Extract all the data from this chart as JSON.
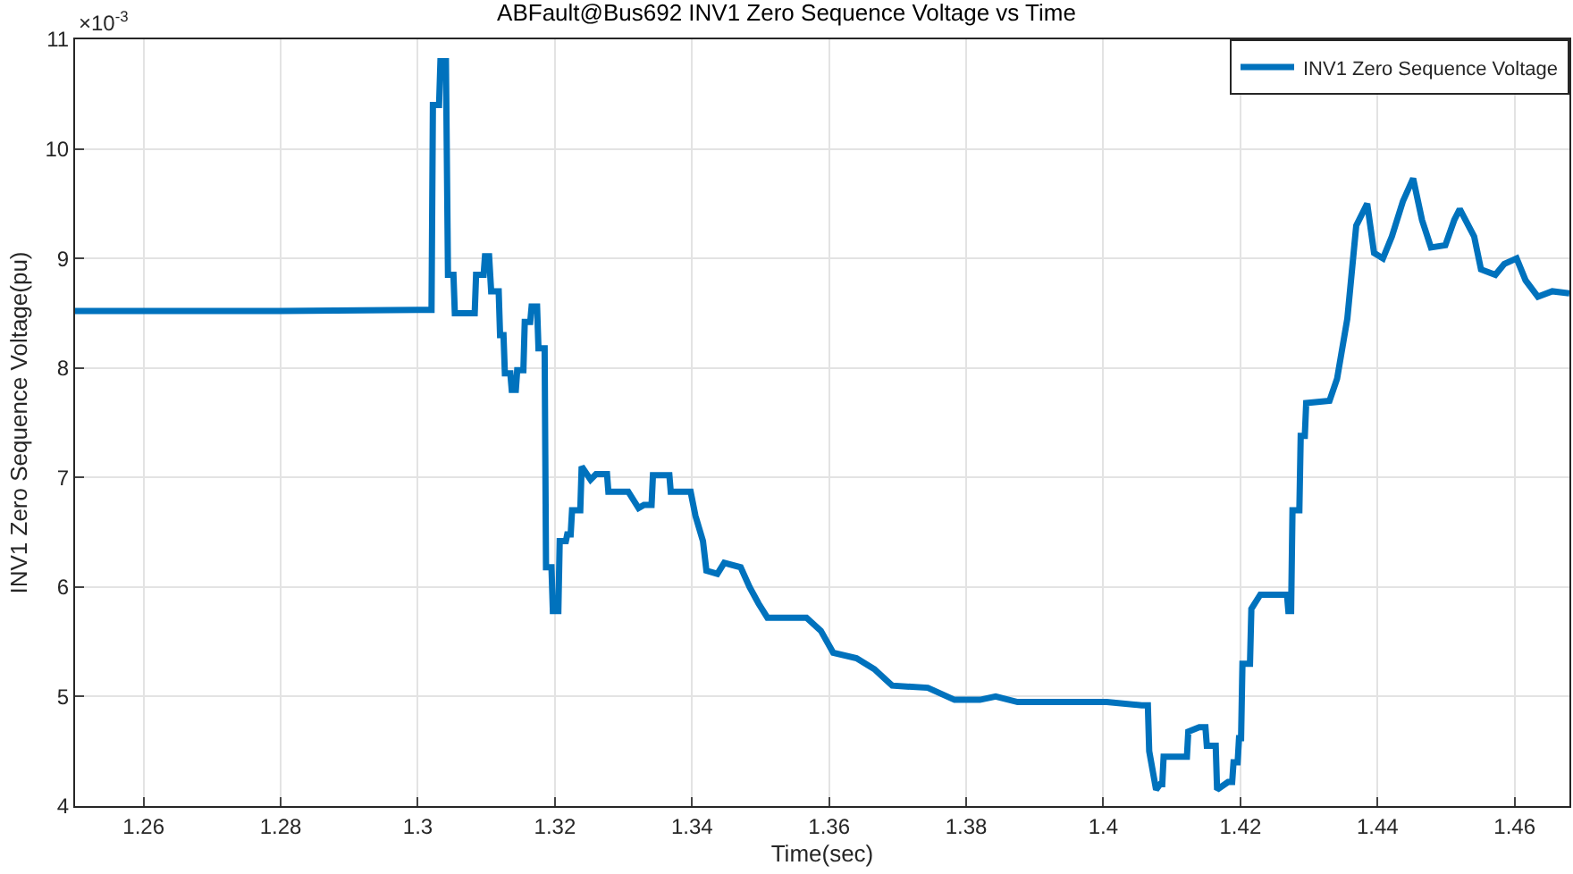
{
  "chart_data": {
    "type": "line",
    "title": "ABFault@Bus692 INV1 Zero Sequence Voltage vs Time",
    "xlabel": "Time(sec)",
    "ylabel": "INV1 Zero Sequence Voltage(pu)",
    "annotations": [
      "×10$^{-3}$"
    ],
    "xlim": [
      1.25,
      1.468
    ],
    "xticks": [
      1.26,
      1.28,
      1.3,
      1.32,
      1.34,
      1.36,
      1.38,
      1.4,
      1.42,
      1.44,
      1.46
    ],
    "ylim": [
      4,
      11
    ],
    "yticks": [
      4,
      5,
      6,
      7,
      8,
      9,
      10,
      11
    ],
    "grid": true,
    "legend": "top right",
    "line_style": "solid",
    "marker": "none",
    "series": [
      {
        "name": "INV1 Zero Sequence Voltage",
        "color": "#0072bd",
        "x": [
          1.25,
          1.26,
          1.28,
          1.3,
          1.302,
          1.3022,
          1.3031,
          1.3033,
          1.3041,
          1.3044,
          1.3046,
          1.3052,
          1.3054,
          1.308,
          1.3083,
          1.3085,
          1.3096,
          1.3098,
          1.3104,
          1.3107,
          1.3109,
          1.3118,
          1.312,
          1.3125,
          1.3127,
          1.3135,
          1.3137,
          1.3143,
          1.3145,
          1.3154,
          1.3156,
          1.3164,
          1.3166,
          1.3174,
          1.3176,
          1.3185,
          1.3187,
          1.3195,
          1.3197,
          1.3205,
          1.3207,
          1.3216,
          1.3218,
          1.3223,
          1.3225,
          1.3237,
          1.3239,
          1.3252,
          1.326,
          1.3276,
          1.3278,
          1.3307,
          1.3322,
          1.333,
          1.3341,
          1.3343,
          1.3361,
          1.3367,
          1.3369,
          1.3398,
          1.3405,
          1.3416,
          1.3421,
          1.3437,
          1.3447,
          1.3471,
          1.3484,
          1.3497,
          1.351,
          1.3567,
          1.3588,
          1.3606,
          1.364,
          1.3666,
          1.3692,
          1.3744,
          1.3783,
          1.382,
          1.3843,
          1.3875,
          1.4005,
          1.4056,
          1.4065,
          1.4067,
          1.4077,
          1.4083,
          1.4086,
          1.4088,
          1.4114,
          1.4122,
          1.4124,
          1.414,
          1.4149,
          1.4151,
          1.4164,
          1.4166,
          1.4182,
          1.4188,
          1.419,
          1.4196,
          1.4198,
          1.4201,
          1.4203,
          1.4214,
          1.4216,
          1.4229,
          1.425,
          1.4268,
          1.427,
          1.4274,
          1.4276,
          1.4286,
          1.4288,
          1.4294,
          1.4296,
          1.433,
          1.4341,
          1.4356,
          1.4369,
          1.4385,
          1.4395,
          1.4408,
          1.4421,
          1.4437,
          1.4452,
          1.4465,
          1.4478,
          1.4499,
          1.4512,
          1.452,
          1.4541,
          1.4551,
          1.4572,
          1.4585,
          1.4603,
          1.4616,
          1.4634,
          1.4655,
          1.468
        ],
        "values": [
          8.52,
          8.52,
          8.52,
          8.53,
          8.53,
          10.4,
          10.4,
          10.8,
          10.8,
          8.85,
          8.85,
          8.85,
          8.5,
          8.5,
          8.5,
          8.85,
          8.85,
          9.02,
          9.02,
          8.7,
          8.7,
          8.7,
          8.3,
          8.3,
          7.95,
          7.95,
          7.8,
          7.8,
          7.98,
          7.98,
          8.42,
          8.42,
          8.56,
          8.56,
          8.18,
          8.18,
          6.18,
          6.18,
          5.78,
          5.78,
          6.42,
          6.42,
          6.48,
          6.48,
          6.7,
          6.7,
          7.1,
          6.98,
          7.03,
          7.03,
          6.87,
          6.87,
          6.72,
          6.75,
          6.75,
          7.02,
          7.02,
          7.02,
          6.87,
          6.87,
          6.65,
          6.42,
          6.15,
          6.12,
          6.22,
          6.18,
          6.0,
          5.85,
          5.72,
          5.72,
          5.6,
          5.4,
          5.35,
          5.25,
          5.1,
          5.08,
          4.97,
          4.97,
          5.0,
          4.95,
          4.95,
          4.92,
          4.92,
          4.5,
          4.15,
          4.2,
          4.2,
          4.45,
          4.45,
          4.45,
          4.68,
          4.72,
          4.72,
          4.55,
          4.55,
          4.15,
          4.22,
          4.22,
          4.4,
          4.4,
          4.62,
          4.62,
          5.3,
          5.3,
          5.8,
          5.93,
          5.93,
          5.93,
          5.78,
          5.78,
          6.7,
          6.7,
          7.38,
          7.38,
          7.68,
          7.7,
          7.9,
          8.45,
          9.3,
          9.5,
          9.05,
          9.0,
          9.2,
          9.52,
          9.73,
          9.35,
          9.1,
          9.12,
          9.35,
          9.45,
          9.2,
          8.9,
          8.85,
          8.95,
          9.0,
          8.8,
          8.65,
          8.7,
          8.68
        ]
      }
    ]
  }
}
